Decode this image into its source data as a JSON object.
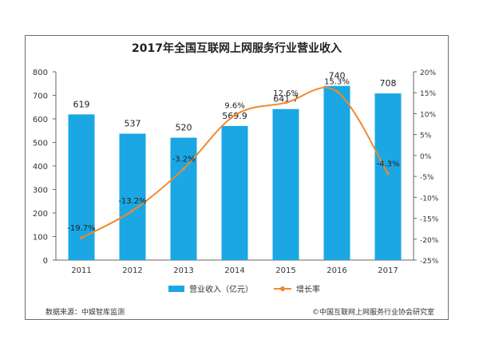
{
  "chart_data": {
    "type": "bar",
    "title": "2017年全国互联网上网服务行业营业收入",
    "categories": [
      "2011",
      "2012",
      "2013",
      "2014",
      "2015",
      "2016",
      "2017"
    ],
    "series": [
      {
        "name": "营业收入（亿元）",
        "type": "bar",
        "axis": "left",
        "values": [
          619,
          537,
          520,
          569.9,
          641.7,
          740,
          708
        ],
        "labels": [
          "619",
          "537",
          "520",
          "569.9",
          "641.7",
          "740",
          "708"
        ]
      },
      {
        "name": "增长率",
        "type": "line",
        "axis": "right",
        "values": [
          -19.7,
          -13.2,
          -3.2,
          9.6,
          12.6,
          15.3,
          -4.3
        ],
        "labels": [
          "-19.7%",
          "-13.2%",
          "-3.2%",
          "9.6%",
          "12.6%",
          "15.3%",
          "-4.3%"
        ]
      }
    ],
    "ylim": [
      0,
      800
    ],
    "y_ticks": [
      "0",
      "100",
      "200",
      "300",
      "400",
      "500",
      "600",
      "700",
      "800"
    ],
    "y2lim": [
      -25,
      20
    ],
    "y2_ticks": [
      "-25%",
      "-20%",
      "-15%",
      "-10%",
      "-5%",
      "0%",
      "5%",
      "10%",
      "15%",
      "20%"
    ],
    "xlabel": "",
    "ylabel": "",
    "grid": false,
    "legend_position": "bottom",
    "colors": {
      "bar": "#1aa7e4",
      "line": "#ef8a2c",
      "axis": "#666666"
    }
  },
  "footer": {
    "source": "数据来源：中娱智库监测",
    "copyright": "©中国互联网上网服务行业协会研究室"
  }
}
